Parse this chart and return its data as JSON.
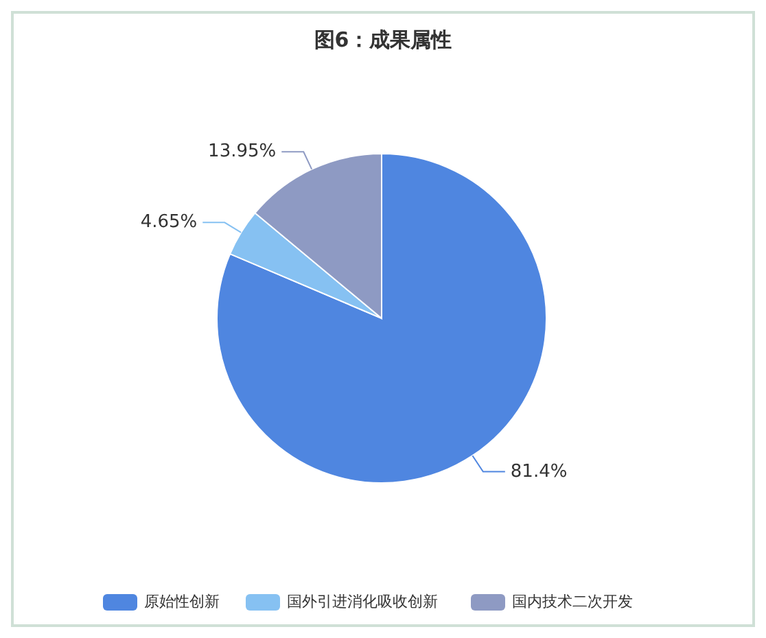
{
  "chart_data": {
    "type": "pie",
    "title": "图6：成果属性",
    "categories": [
      "原始性创新",
      "国外引进消化吸收创新",
      "国内技术二次开发"
    ],
    "values": [
      81.4,
      4.65,
      13.95
    ],
    "colors": [
      "#4f86e0",
      "#86c1f2",
      "#8e9ac3"
    ],
    "value_labels": [
      "81.4%",
      "4.65%",
      "13.95%"
    ],
    "legend": "bottom"
  }
}
